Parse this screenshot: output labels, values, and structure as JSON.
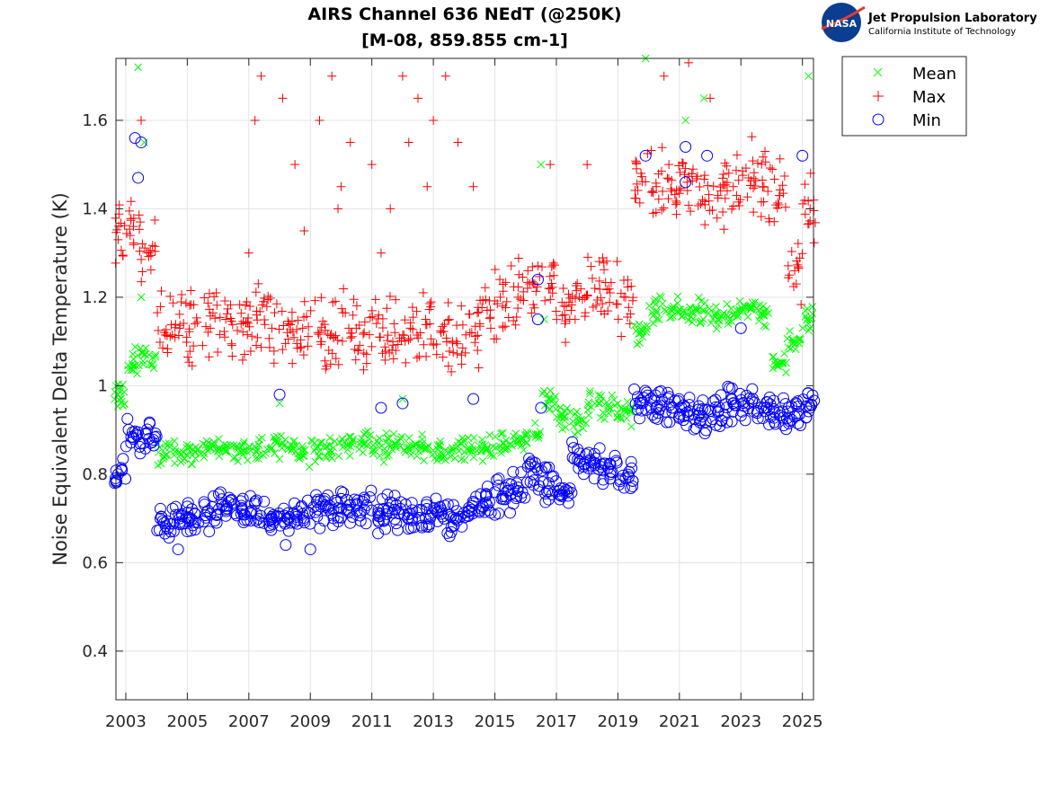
{
  "logo": {
    "agency": "NASA",
    "line1": "Jet Propulsion Laboratory",
    "line2": "California Institute of Technology"
  },
  "chart_data": {
    "type": "scatter",
    "title": "AIRS Channel 636 NEdT (@250K)",
    "subtitle": "[M-08, 859.855 cm-1]",
    "xlabel": "",
    "ylabel": "Noise Equivalent Delta Temperature (K)",
    "xlim": [
      2002.68,
      2025.36
    ],
    "ylim": [
      0.29,
      1.74
    ],
    "xticks": [
      "2003",
      "2005",
      "2007",
      "2009",
      "2011",
      "2013",
      "2015",
      "2017",
      "2019",
      "2021",
      "2023",
      "2025"
    ],
    "yticks": [
      "0.4",
      "0.6",
      "0.8",
      "1",
      "1.2",
      "1.4",
      "1.6"
    ],
    "grid": true,
    "legend_position": "outside-top-right",
    "x": [
      2002.75,
      2003.25,
      2003.75,
      2004.25,
      2004.75,
      2005.25,
      2005.75,
      2006.25,
      2006.75,
      2007.25,
      2007.75,
      2008.25,
      2008.75,
      2009.25,
      2009.75,
      2010.25,
      2010.75,
      2011.25,
      2011.75,
      2012.25,
      2012.75,
      2013.25,
      2013.75,
      2014.25,
      2014.75,
      2015.25,
      2015.75,
      2016.25,
      2016.75,
      2017.25,
      2017.75,
      2018.25,
      2018.75,
      2019.25,
      2019.75,
      2020.25,
      2020.75,
      2021.25,
      2021.75,
      2022.25,
      2022.75,
      2023.25,
      2023.75,
      2024.25,
      2024.75,
      2025.25
    ],
    "series": [
      {
        "name": "Mean",
        "marker": "x",
        "color": "#00ff00",
        "values": [
          0.98,
          1.06,
          1.07,
          0.84,
          0.85,
          0.85,
          0.86,
          0.86,
          0.85,
          0.85,
          0.86,
          0.86,
          0.85,
          0.86,
          0.86,
          0.87,
          0.87,
          0.86,
          0.87,
          0.86,
          0.86,
          0.85,
          0.86,
          0.85,
          0.86,
          0.87,
          0.88,
          0.89,
          0.97,
          0.93,
          0.92,
          0.96,
          0.95,
          0.94,
          1.12,
          1.17,
          1.17,
          1.16,
          1.17,
          1.15,
          1.16,
          1.18,
          1.16,
          1.05,
          1.1,
          1.15
        ],
        "outliers": [
          [
            2003.4,
            1.72
          ],
          [
            2003.6,
            1.55
          ],
          [
            2003.5,
            1.2
          ],
          [
            2016.5,
            1.5
          ],
          [
            2021.2,
            1.6
          ],
          [
            2021.8,
            1.65
          ],
          [
            2019.9,
            1.74
          ],
          [
            2025.2,
            1.7
          ],
          [
            2008.0,
            0.96
          ],
          [
            2012.0,
            0.97
          ],
          [
            2016.6,
            1.15
          ]
        ]
      },
      {
        "name": "Max",
        "marker": "+",
        "color": "#ff0000",
        "values": [
          1.33,
          1.36,
          1.3,
          1.12,
          1.13,
          1.14,
          1.13,
          1.15,
          1.14,
          1.16,
          1.13,
          1.12,
          1.13,
          1.12,
          1.11,
          1.13,
          1.12,
          1.11,
          1.12,
          1.13,
          1.15,
          1.12,
          1.1,
          1.12,
          1.17,
          1.18,
          1.2,
          1.23,
          1.22,
          1.18,
          1.2,
          1.22,
          1.21,
          1.2,
          1.48,
          1.45,
          1.44,
          1.46,
          1.42,
          1.43,
          1.45,
          1.47,
          1.45,
          1.43,
          1.26,
          1.4
        ],
        "outliers": [
          [
            2007.2,
            1.6
          ],
          [
            2007.4,
            1.7
          ],
          [
            2008.1,
            1.65
          ],
          [
            2008.5,
            1.5
          ],
          [
            2009.3,
            1.6
          ],
          [
            2009.7,
            1.7
          ],
          [
            2010.0,
            1.45
          ],
          [
            2010.3,
            1.55
          ],
          [
            2011.0,
            1.5
          ],
          [
            2011.6,
            1.4
          ],
          [
            2012.0,
            1.7
          ],
          [
            2012.5,
            1.65
          ],
          [
            2013.0,
            1.6
          ],
          [
            2013.4,
            1.7
          ],
          [
            2013.8,
            1.55
          ],
          [
            2014.3,
            1.45
          ],
          [
            2008.8,
            1.35
          ],
          [
            2012.8,
            1.45
          ],
          [
            2016.8,
            1.5
          ],
          [
            2018.0,
            1.5
          ],
          [
            2003.5,
            1.6
          ],
          [
            2020.5,
            1.7
          ],
          [
            2021.3,
            1.73
          ],
          [
            2022.0,
            1.65
          ],
          [
            2007.0,
            1.3
          ],
          [
            2011.3,
            1.3
          ],
          [
            2012.2,
            1.55
          ],
          [
            2009.9,
            1.4
          ]
        ]
      },
      {
        "name": "Min",
        "marker": "o",
        "color": "#0000ff",
        "values": [
          0.8,
          0.88,
          0.88,
          0.69,
          0.7,
          0.71,
          0.71,
          0.72,
          0.71,
          0.71,
          0.7,
          0.7,
          0.71,
          0.72,
          0.72,
          0.73,
          0.72,
          0.71,
          0.72,
          0.71,
          0.7,
          0.71,
          0.7,
          0.72,
          0.73,
          0.75,
          0.77,
          0.8,
          0.78,
          0.76,
          0.83,
          0.82,
          0.8,
          0.79,
          0.96,
          0.95,
          0.95,
          0.94,
          0.93,
          0.94,
          0.96,
          0.96,
          0.95,
          0.94,
          0.93,
          0.95
        ],
        "outliers": [
          [
            2003.3,
            1.56
          ],
          [
            2003.5,
            1.55
          ],
          [
            2003.4,
            1.47
          ],
          [
            2016.4,
            1.24
          ],
          [
            2016.4,
            1.15
          ],
          [
            2019.9,
            1.52
          ],
          [
            2021.2,
            1.54
          ],
          [
            2021.2,
            1.46
          ],
          [
            2021.9,
            1.52
          ],
          [
            2025.0,
            1.52
          ],
          [
            2008.0,
            0.98
          ],
          [
            2011.3,
            0.95
          ],
          [
            2012.0,
            0.96
          ],
          [
            2014.3,
            0.97
          ],
          [
            2023.0,
            1.13
          ],
          [
            2008.2,
            0.64
          ],
          [
            2009.0,
            0.63
          ],
          [
            2004.7,
            0.63
          ],
          [
            2016.5,
            0.95
          ]
        ]
      }
    ]
  }
}
